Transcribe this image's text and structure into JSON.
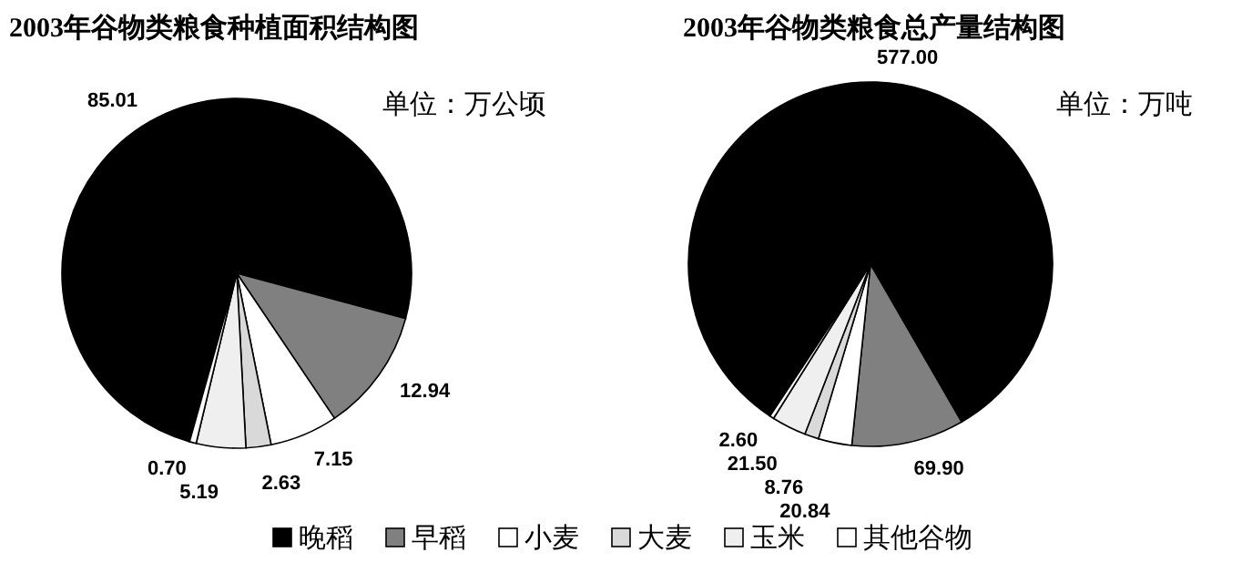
{
  "chart_data": [
    {
      "type": "pie",
      "title": "2003年谷物类粮食种植面积结构图",
      "annotations": [
        "单位：万公顷"
      ],
      "categories": [
        "晚稻",
        "早稻",
        "小麦",
        "大麦",
        "玉米",
        "其他谷物"
      ],
      "values": [
        85.01,
        12.94,
        7.15,
        2.63,
        5.19,
        0.7
      ],
      "value_labels": [
        "85.01",
        "12.94",
        "7.15",
        "2.63",
        "5.19",
        "0.70"
      ],
      "colors": [
        "#000000",
        "#808080",
        "#ffffff",
        "#d9d9d9",
        "#efefef",
        "#ffffff"
      ],
      "legend": "bottom"
    },
    {
      "type": "pie",
      "title": "2003年谷物类粮食总产量结构图",
      "annotations": [
        "单位：万吨"
      ],
      "categories": [
        null,
        null,
        null,
        null,
        null,
        null
      ],
      "values": [
        577.0,
        69.9,
        20.84,
        8.76,
        21.5,
        2.6
      ],
      "value_labels": [
        "577.00",
        "69.90",
        "20.84",
        "8.76",
        "21.50",
        "2.60"
      ],
      "colors": [
        "#000000",
        "#808080",
        "#ffffff",
        "#d9d9d9",
        "#efefef",
        "#ffffff"
      ]
    }
  ]
}
